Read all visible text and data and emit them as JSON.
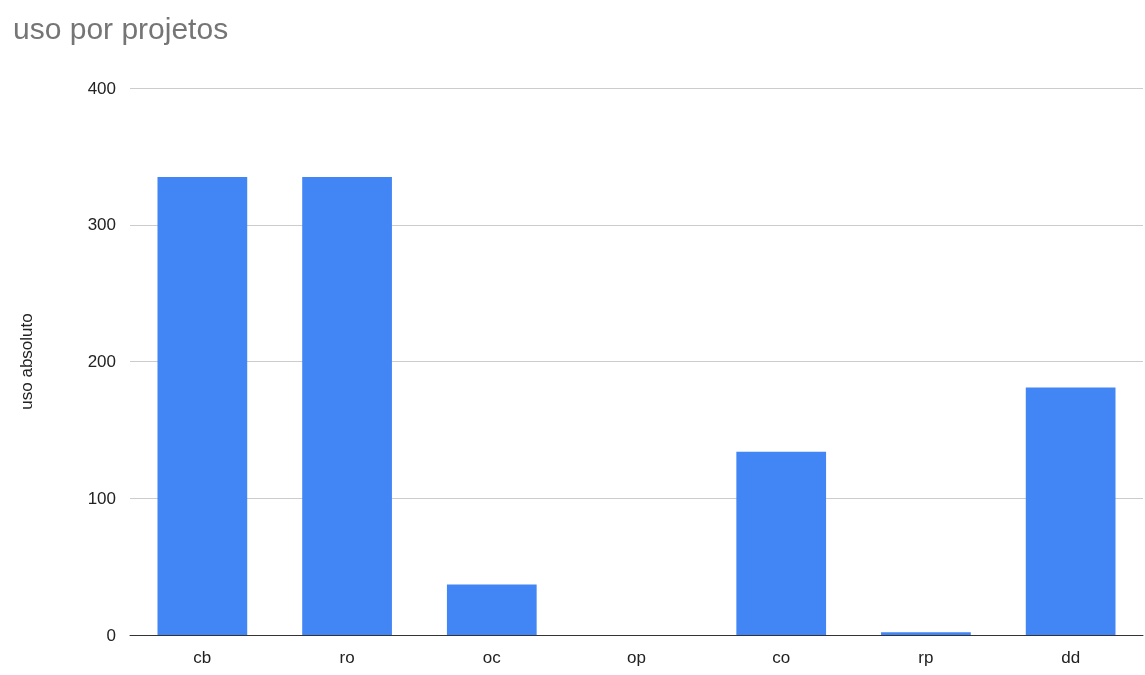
{
  "chart_data": {
    "type": "bar",
    "title": "uso por projetos",
    "ylabel": "uso absoluto",
    "categories": [
      "cb",
      "ro",
      "oc",
      "op",
      "co",
      "rp",
      "dd"
    ],
    "values": [
      335,
      335,
      37,
      0,
      134,
      2,
      181
    ],
    "color": "#4285f4",
    "ylim": [
      0,
      400
    ],
    "yticks": [
      0,
      100,
      200,
      300,
      400
    ],
    "grid": "y"
  }
}
